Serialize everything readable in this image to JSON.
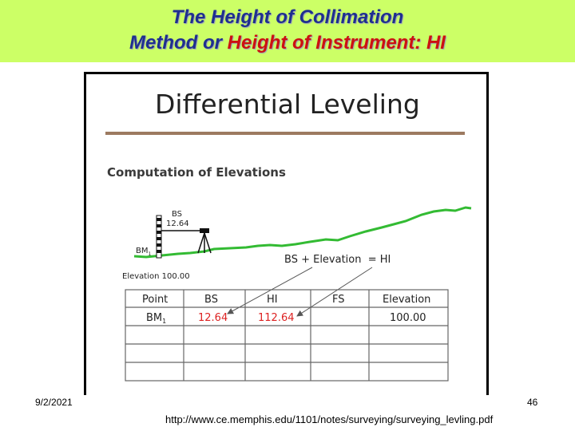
{
  "title": {
    "line1": "The Height of Collimation",
    "line2_prefix": "Method or ",
    "line2_highlight": "Height of Instrument: HI"
  },
  "figure": {
    "heading": "Differential Leveling",
    "subheading": "Computation of Elevations",
    "bs_label": "BS",
    "bs_value": "12.64",
    "bm_label": "BM",
    "bm_subscript": "1",
    "elevation_label": "Elevation 100.00",
    "equation": "BS + Elevation  = HI",
    "table": {
      "headers": [
        "Point",
        "BS",
        "HI",
        "FS",
        "Elevation"
      ],
      "row1": {
        "point": "BM",
        "point_sub": "1",
        "bs": "12.64",
        "hi": "112.64",
        "fs": "",
        "elevation": "100.00"
      }
    },
    "colors": {
      "ground": "#33bb33",
      "highlight_value": "#dd2222",
      "arrow": "#555555"
    }
  },
  "footer": {
    "date": "9/2/2021",
    "page": "46",
    "url": "http://www.ce.memphis.edu/1101/notes/surveying/surveying_levling.pdf"
  }
}
